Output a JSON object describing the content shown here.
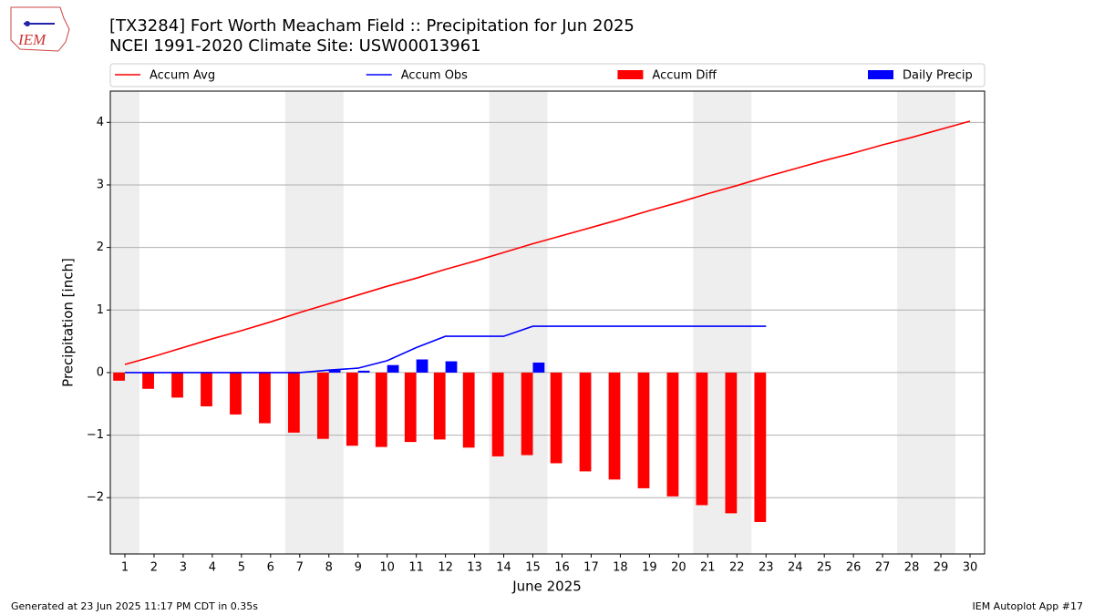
{
  "logo": "IEM",
  "footer_left": "Generated at 23 Jun 2025 11:17 PM CDT in 0.35s",
  "footer_right": "IEM Autoplot App #17",
  "chart_data": {
    "type": "bar",
    "title": "[TX3284] Fort Worth Meacham Field :: Precipitation for Jun 2025",
    "subtitle": "NCEI 1991-2020 Climate Site: USW00013961",
    "xlabel": "June 2025",
    "ylabel": "Precipitation [inch]",
    "x": [
      1,
      2,
      3,
      4,
      5,
      6,
      7,
      8,
      9,
      10,
      11,
      12,
      13,
      14,
      15,
      16,
      17,
      18,
      19,
      20,
      21,
      22,
      23,
      24,
      25,
      26,
      27,
      28,
      29,
      30
    ],
    "xlim": [
      0.5,
      30.5
    ],
    "xticks": [
      1,
      2,
      3,
      4,
      5,
      6,
      7,
      8,
      9,
      10,
      11,
      12,
      13,
      14,
      15,
      16,
      17,
      18,
      19,
      20,
      21,
      22,
      23,
      24,
      25,
      26,
      27,
      28,
      29,
      30
    ],
    "ylim": [
      -2.9,
      4.5
    ],
    "yticks": [
      {
        "value": -2,
        "label": "−2"
      },
      {
        "value": -1,
        "label": "−1"
      },
      0,
      1,
      2,
      3,
      4
    ],
    "grid": "y",
    "legend": "top",
    "shaded": [
      [
        0.5,
        1.5
      ],
      [
        6.5,
        8.5
      ],
      [
        13.5,
        15.5
      ],
      [
        20.5,
        22.5
      ],
      [
        27.5,
        29.5
      ]
    ],
    "shade_color": "#eeeeee",
    "series": [
      {
        "name": "Accum Avg",
        "type": "line",
        "color": "#ff0000",
        "values": [
          0.13,
          0.26,
          0.4,
          0.54,
          0.67,
          0.81,
          0.96,
          1.1,
          1.24,
          1.38,
          1.51,
          1.65,
          1.78,
          1.92,
          2.06,
          2.19,
          2.32,
          2.45,
          2.59,
          2.72,
          2.86,
          2.99,
          3.13,
          3.26,
          3.39,
          3.51,
          3.64,
          3.76,
          3.89,
          4.02
        ]
      },
      {
        "name": "Accum Obs",
        "type": "line",
        "color": "#0000ff",
        "values": [
          0,
          0,
          0,
          0,
          0,
          0,
          0,
          0.04,
          0.07,
          0.19,
          0.4,
          0.58,
          0.58,
          0.58,
          0.74,
          0.74,
          0.74,
          0.74,
          0.74,
          0.74,
          0.74,
          0.74,
          0.74,
          null,
          null,
          null,
          null,
          null,
          null,
          null
        ]
      },
      {
        "name": "Accum Diff",
        "type": "bar",
        "color": "#ff0000",
        "values": [
          -0.13,
          -0.26,
          -0.4,
          -0.54,
          -0.67,
          -0.81,
          -0.96,
          -1.06,
          -1.17,
          -1.19,
          -1.11,
          -1.07,
          -1.2,
          -1.34,
          -1.32,
          -1.45,
          -1.58,
          -1.71,
          -1.85,
          -1.98,
          -2.12,
          -2.25,
          -2.39,
          null,
          null,
          null,
          null,
          null,
          null,
          null
        ]
      },
      {
        "name": "Daily Precip",
        "type": "bar",
        "color": "#0000ff",
        "values": [
          0,
          0,
          0,
          0,
          0,
          0,
          0,
          0.04,
          0.03,
          0.12,
          0.21,
          0.18,
          0,
          0,
          0.16,
          0,
          0,
          0,
          0,
          0,
          0,
          0,
          0,
          null,
          null,
          null,
          null,
          null,
          null,
          null
        ]
      }
    ]
  }
}
